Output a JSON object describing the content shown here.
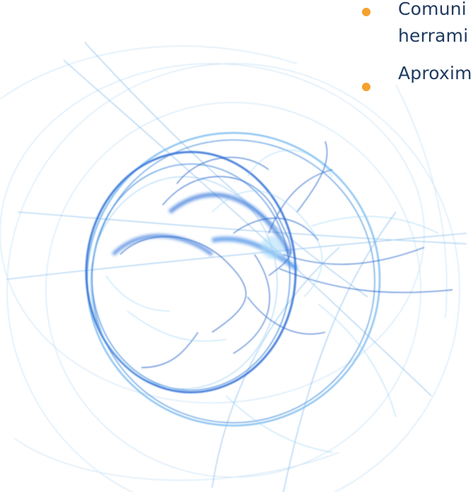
{
  "slide": {
    "bullets": [
      {
        "line1": "Comuni",
        "line2": "herrami"
      },
      {
        "line1": "Aproxim"
      }
    ],
    "colors": {
      "bullet": "#f5a12e",
      "text": "#1f3a5f",
      "art_primary": "#2f6fd6",
      "art_light": "#7ec2f2"
    },
    "art_icon": "abstract-fractal-swirl"
  }
}
